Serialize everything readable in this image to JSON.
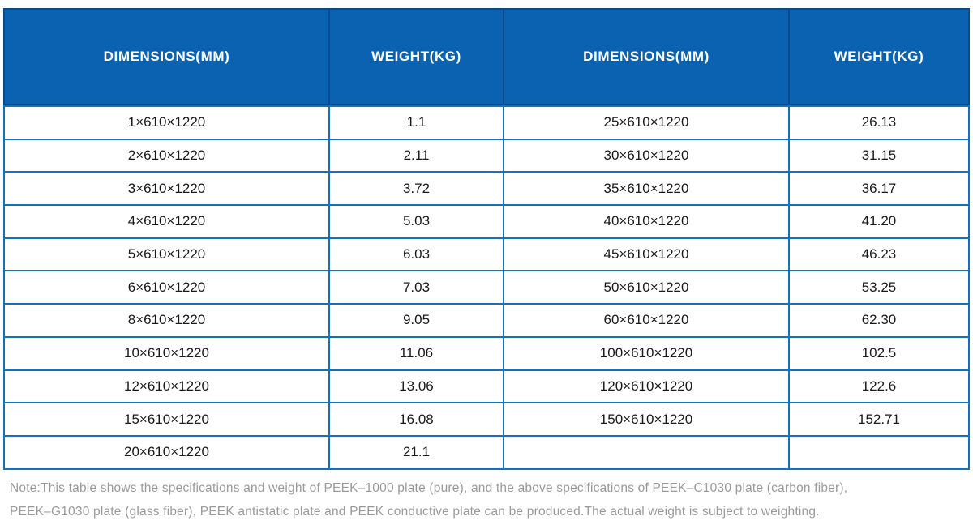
{
  "table": {
    "columns": [
      "DIMENSIONS(MM)",
      "WEIGHT(KG)",
      "DIMENSIONS(MM)",
      "WEIGHT(KG)"
    ],
    "rows": [
      [
        "1×610×1220",
        "1.1",
        "25×610×1220",
        "26.13"
      ],
      [
        "2×610×1220",
        "2.11",
        "30×610×1220",
        "31.15"
      ],
      [
        "3×610×1220",
        "3.72",
        "35×610×1220",
        "36.17"
      ],
      [
        "4×610×1220",
        "5.03",
        "40×610×1220",
        "41.20"
      ],
      [
        "5×610×1220",
        "6.03",
        "45×610×1220",
        "46.23"
      ],
      [
        "6×610×1220",
        "7.03",
        "50×610×1220",
        "53.25"
      ],
      [
        "8×610×1220",
        "9.05",
        "60×610×1220",
        "62.30"
      ],
      [
        "10×610×1220",
        "11.06",
        "100×610×1220",
        "102.5"
      ],
      [
        "12×610×1220",
        "13.06",
        "120×610×1220",
        "122.6"
      ],
      [
        "15×610×1220",
        "16.08",
        "150×610×1220",
        "152.71"
      ],
      [
        "20×610×1220",
        "21.1",
        "",
        ""
      ]
    ]
  },
  "note": {
    "line1": "Note:This table shows the specifications and weight of PEEK–1000 plate (pure), and the above specifications of PEEK–C1030 plate (carbon fiber),",
    "line2": "PEEK–G1030 plate (glass fiber), PEEK antistatic plate and PEEK conductive plate can be produced.The actual weight is subject to weighting."
  },
  "colors": {
    "header_background": "#0a62b0",
    "header_divider": "#0a4a8e",
    "grid_line": "#1173b9",
    "body_text": "#1a1a1a",
    "header_text": "#ffffff",
    "note_text": "#9a9a9a"
  }
}
